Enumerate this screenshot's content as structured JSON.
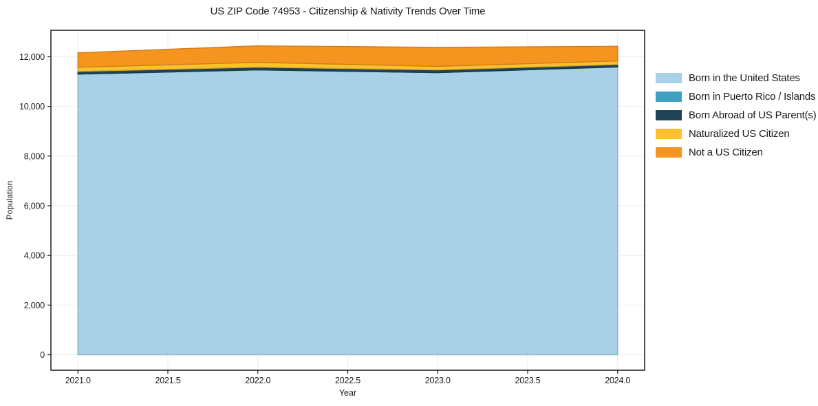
{
  "chart_data": {
    "type": "area",
    "stacked": true,
    "title": "US ZIP Code 74953 - Citizenship & Nativity Trends Over Time",
    "xlabel": "Year",
    "ylabel": "Population",
    "x": [
      2021,
      2022,
      2023,
      2024
    ],
    "series": [
      {
        "name": "Born in the United States",
        "color": "#a8d1e7",
        "values": [
          11300,
          11470,
          11360,
          11590
        ]
      },
      {
        "name": "Born in Puerto Rico / Islands",
        "color": "#41a0c0",
        "values": [
          0,
          0,
          0,
          0
        ]
      },
      {
        "name": "Born Abroad of US Parent(s)",
        "color": "#1f4456",
        "values": [
          110,
          110,
          110,
          100
        ]
      },
      {
        "name": "Naturalized US Citizen",
        "color": "#fcc22d",
        "values": [
          165,
          195,
          140,
          140
        ]
      },
      {
        "name": "Not a US Citizen",
        "color": "#f5941f",
        "values": [
          585,
          665,
          770,
          590
        ]
      }
    ],
    "totals": [
      12160,
      12440,
      12380,
      12420
    ],
    "xlim": [
      2020.85,
      2024.15
    ],
    "ylim": [
      -622,
      13066
    ],
    "xticks": [
      2021.0,
      2021.5,
      2022.0,
      2022.5,
      2023.0,
      2023.5,
      2024.0
    ],
    "xtick_labels": [
      "2021.0",
      "2021.5",
      "2022.0",
      "2022.5",
      "2023.0",
      "2023.5",
      "2024.0"
    ],
    "yticks": [
      0,
      2000,
      4000,
      6000,
      8000,
      10000,
      12000
    ],
    "ytick_labels": [
      "0",
      "2,000",
      "4,000",
      "6,000",
      "8,000",
      "10,000",
      "12,000"
    ],
    "grid": true,
    "grid_color": "#ebebeb",
    "spine_color": "#1a1a1a",
    "legend_position": "right"
  }
}
